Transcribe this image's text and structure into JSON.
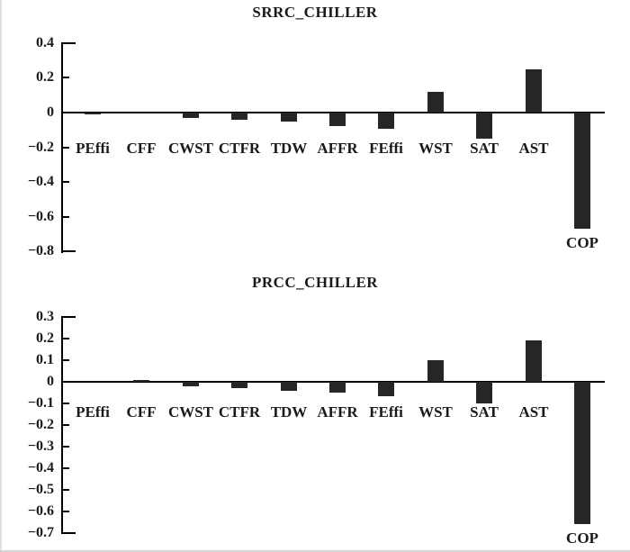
{
  "page": {
    "background": "#ffffff",
    "axis_color": "#000000",
    "bar_color": "#262626",
    "text_color": "#1a1a1a"
  },
  "chart_data": [
    {
      "type": "bar",
      "title": "SRRC_CHILLER",
      "categories": [
        "PEffi",
        "CFF",
        "CWST",
        "CTFR",
        "TDW",
        "AFFR",
        "FEffi",
        "WST",
        "SAT",
        "AST",
        "COP"
      ],
      "values": [
        -0.01,
        0.0,
        -0.03,
        -0.04,
        -0.05,
        -0.08,
        -0.095,
        0.12,
        -0.15,
        0.25,
        -0.67
      ],
      "xlabel": "",
      "ylabel": "",
      "ylim": [
        -0.8,
        0.4
      ],
      "yticks": [
        "0.4",
        "0.2",
        "0",
        "−0.2",
        "−0.4",
        "−0.6",
        "−0.8"
      ],
      "ytick_values": [
        0.4,
        0.2,
        0,
        -0.2,
        -0.4,
        -0.6,
        -0.8
      ],
      "grid": false,
      "legend": false,
      "bar_color": "#262626"
    },
    {
      "type": "bar",
      "title": "PRCC_CHILLER",
      "categories": [
        "PEffi",
        "CFF",
        "CWST",
        "CTFR",
        "TDW",
        "AFFR",
        "FEffi",
        "WST",
        "SAT",
        "AST",
        "COP"
      ],
      "values": [
        0.0,
        0.01,
        -0.02,
        -0.03,
        -0.04,
        -0.05,
        -0.065,
        0.1,
        -0.1,
        0.19,
        -0.66
      ],
      "xlabel": "",
      "ylabel": "",
      "ylim": [
        -0.7,
        0.3
      ],
      "yticks": [
        "0.3",
        "0.2",
        "0.1",
        "0",
        "−0.1",
        "−0.2",
        "−0.3",
        "−0.4",
        "−0.5",
        "−0.6",
        "−0.7"
      ],
      "ytick_values": [
        0.3,
        0.2,
        0.1,
        0,
        -0.1,
        -0.2,
        -0.3,
        -0.4,
        -0.5,
        -0.6,
        -0.7
      ],
      "grid": false,
      "legend": false,
      "bar_color": "#262626"
    }
  ]
}
